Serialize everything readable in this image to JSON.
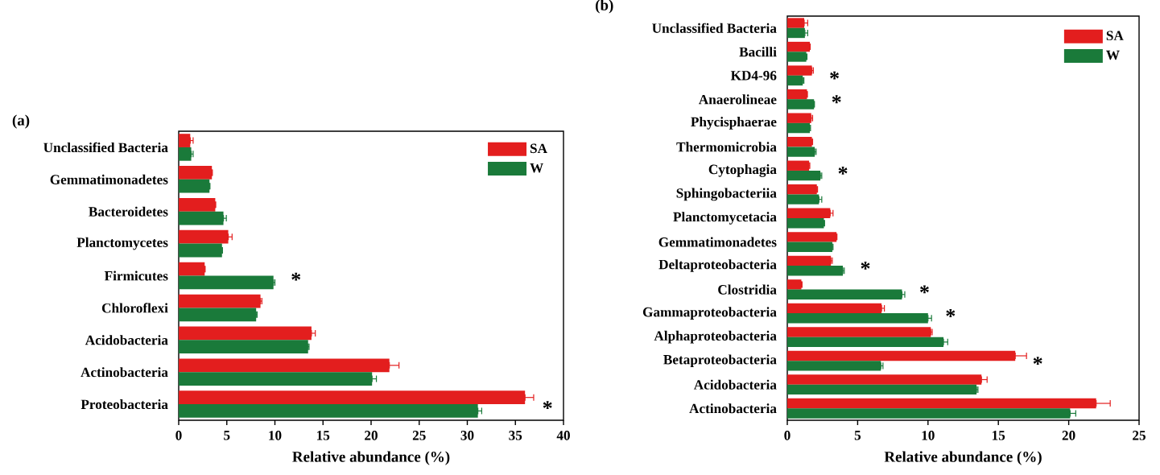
{
  "chart_data": [
    {
      "type": "bar",
      "orientation": "horizontal",
      "title": "(a)",
      "xlabel": "Relative abundance (%)",
      "categories": [
        "Unclassified Bacteria",
        "Gemmatimonadetes",
        "Bacteroidetes",
        "Planctomycetes",
        "Firmicutes",
        "Chloroflexi",
        "Acidobacteria",
        "Actinobacteria",
        "Proteobacteria"
      ],
      "series": [
        {
          "name": "SA",
          "color": "#e31e1e",
          "values": [
            1.2,
            3.45,
            3.8,
            5.15,
            2.7,
            8.5,
            13.8,
            21.9,
            36.0
          ],
          "errors": [
            [
              1.2,
              1.5
            ],
            [
              3.45,
              3.5
            ],
            [
              3.8,
              3.85
            ],
            [
              5.15,
              5.55
            ],
            [
              2.7,
              2.75
            ],
            [
              8.5,
              8.65
            ],
            [
              13.8,
              14.2
            ],
            [
              21.9,
              22.9
            ],
            [
              36.0,
              36.9
            ]
          ]
        },
        {
          "name": "W",
          "color": "#1a7a3a",
          "values": [
            1.3,
            3.2,
            4.65,
            4.5,
            9.85,
            8.05,
            13.45,
            20.1,
            31.1
          ],
          "errors": [
            [
              1.3,
              1.5
            ],
            [
              3.2,
              3.25
            ],
            [
              4.65,
              4.95
            ],
            [
              4.5,
              4.55
            ],
            [
              9.85,
              10.0
            ],
            [
              8.05,
              8.15
            ],
            [
              13.45,
              13.55
            ],
            [
              20.1,
              20.55
            ],
            [
              31.1,
              31.5
            ]
          ]
        }
      ],
      "xlim": [
        0,
        40
      ],
      "xticks": [
        0,
        5,
        10,
        15,
        20,
        25,
        30,
        35,
        40
      ],
      "legend": "top right",
      "annotations": [
        {
          "text": "*",
          "x": 9.85,
          "y": "Firmicutes"
        },
        {
          "text": "*",
          "x": 36.0,
          "y": "Proteobacteria"
        }
      ]
    },
    {
      "type": "bar",
      "orientation": "horizontal",
      "title": "(b)",
      "xlabel": "Relative abundance (%)",
      "categories": [
        "Unclassified Bacteria",
        "Bacilli",
        "KD4-96",
        "Anaerolineae",
        "Phycisphaerae",
        "Thermomicrobia",
        "Cytophagia",
        "Sphingobacteriia",
        "Planctomycetacia",
        "Gemmatimonadetes",
        "Deltaproteobacteria",
        "Clostridia",
        "Gammaproteobacteria",
        "Alphaproteobacteria",
        "Betaproteobacteria",
        "Acidobacteria",
        "Actinobacteria"
      ],
      "series": [
        {
          "name": "SA",
          "color": "#e31e1e",
          "values": [
            1.2,
            1.6,
            1.75,
            1.4,
            1.7,
            1.75,
            1.55,
            2.1,
            3.05,
            3.5,
            3.1,
            1.0,
            6.7,
            10.2,
            16.2,
            13.8,
            21.95
          ],
          "errors": [
            [
              1.2,
              1.45
            ],
            [
              1.6,
              1.63
            ],
            [
              1.75,
              1.85
            ],
            [
              1.4,
              1.43
            ],
            [
              1.7,
              1.8
            ],
            [
              1.75,
              1.8
            ],
            [
              1.55,
              1.6
            ],
            [
              2.1,
              2.15
            ],
            [
              3.05,
              3.25
            ],
            [
              3.5,
              3.53
            ],
            [
              3.1,
              3.2
            ],
            [
              1.0,
              1.05
            ],
            [
              6.7,
              6.9
            ],
            [
              10.2,
              10.3
            ],
            [
              16.2,
              17.0
            ],
            [
              13.8,
              14.2
            ],
            [
              21.95,
              22.95
            ]
          ]
        },
        {
          "name": "W",
          "color": "#1a7a3a",
          "values": [
            1.25,
            1.35,
            1.1,
            1.9,
            1.6,
            1.95,
            2.35,
            2.25,
            2.6,
            3.2,
            3.95,
            8.15,
            10.0,
            11.1,
            6.65,
            13.45,
            20.1
          ],
          "errors": [
            [
              1.25,
              1.45
            ],
            [
              1.35,
              1.4
            ],
            [
              1.1,
              1.18
            ],
            [
              1.9,
              1.93
            ],
            [
              1.6,
              1.65
            ],
            [
              1.95,
              2.05
            ],
            [
              2.35,
              2.45
            ],
            [
              2.25,
              2.45
            ],
            [
              2.6,
              2.65
            ],
            [
              3.2,
              3.25
            ],
            [
              3.95,
              4.05
            ],
            [
              8.15,
              8.35
            ],
            [
              10.0,
              10.25
            ],
            [
              11.1,
              11.4
            ],
            [
              6.65,
              6.8
            ],
            [
              13.45,
              13.55
            ],
            [
              20.1,
              20.5
            ]
          ]
        }
      ],
      "xlim": [
        0,
        25
      ],
      "xticks": [
        0,
        5,
        10,
        15,
        20,
        25
      ],
      "legend": "top right",
      "annotations": [
        {
          "text": "*",
          "x": 1.75,
          "y": "KD4-96"
        },
        {
          "text": "*",
          "x": 1.9,
          "y": "Anaerolineae"
        },
        {
          "text": "*",
          "x": 2.35,
          "y": "Cytophagia"
        },
        {
          "text": "*",
          "x": 3.95,
          "y": "Deltaproteobacteria"
        },
        {
          "text": "*",
          "x": 8.15,
          "y": "Clostridia"
        },
        {
          "text": "*",
          "x": 10.0,
          "y": "Gammaproteobacteria"
        },
        {
          "text": "*",
          "x": 16.2,
          "y": "Betaproteobacteria"
        }
      ]
    }
  ]
}
